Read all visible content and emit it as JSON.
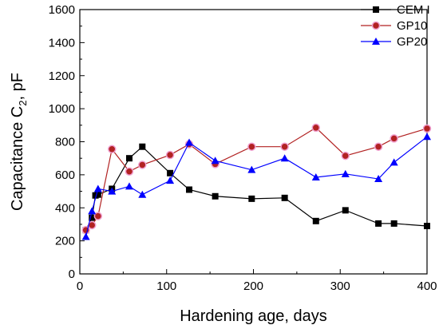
{
  "chart_data": {
    "type": "line",
    "xlabel": "Hardening age, days",
    "ylabel_main": "Capacitance C",
    "ylabel_sub": "2",
    "ylabel_tail": ", pF",
    "xlim": [
      0,
      400
    ],
    "ylim": [
      0,
      1600
    ],
    "x_ticks": [
      "0",
      "100",
      "200",
      "300",
      "400"
    ],
    "y_ticks": [
      "0",
      "200",
      "400",
      "600",
      "800",
      "1000",
      "1200",
      "1400",
      "1600"
    ],
    "legend_position": "top-right",
    "series": [
      {
        "name": "CEM I",
        "color": "#000000",
        "marker": "square",
        "x": [
          7,
          14,
          18,
          21,
          37,
          57,
          72,
          104,
          126,
          156,
          198,
          236,
          272,
          306,
          344,
          362,
          400
        ],
        "y": [
          265,
          340,
          475,
          480,
          515,
          700,
          770,
          610,
          510,
          470,
          455,
          460,
          320,
          385,
          305,
          305,
          290
        ]
      },
      {
        "name": "GP10",
        "color": "#b22222",
        "marker": "circle",
        "x": [
          7,
          14,
          21,
          37,
          57,
          72,
          104,
          126,
          156,
          198,
          236,
          272,
          306,
          344,
          362,
          400
        ],
        "y": [
          265,
          295,
          350,
          755,
          620,
          660,
          720,
          785,
          665,
          770,
          770,
          885,
          715,
          770,
          820,
          880
        ]
      },
      {
        "name": "GP20",
        "color": "#0000ff",
        "marker": "triangle",
        "x": [
          7,
          14,
          21,
          37,
          57,
          72,
          104,
          126,
          156,
          198,
          236,
          272,
          306,
          344,
          362,
          400
        ],
        "y": [
          225,
          380,
          515,
          500,
          530,
          480,
          565,
          795,
          685,
          630,
          700,
          585,
          605,
          575,
          675,
          830
        ]
      }
    ]
  }
}
